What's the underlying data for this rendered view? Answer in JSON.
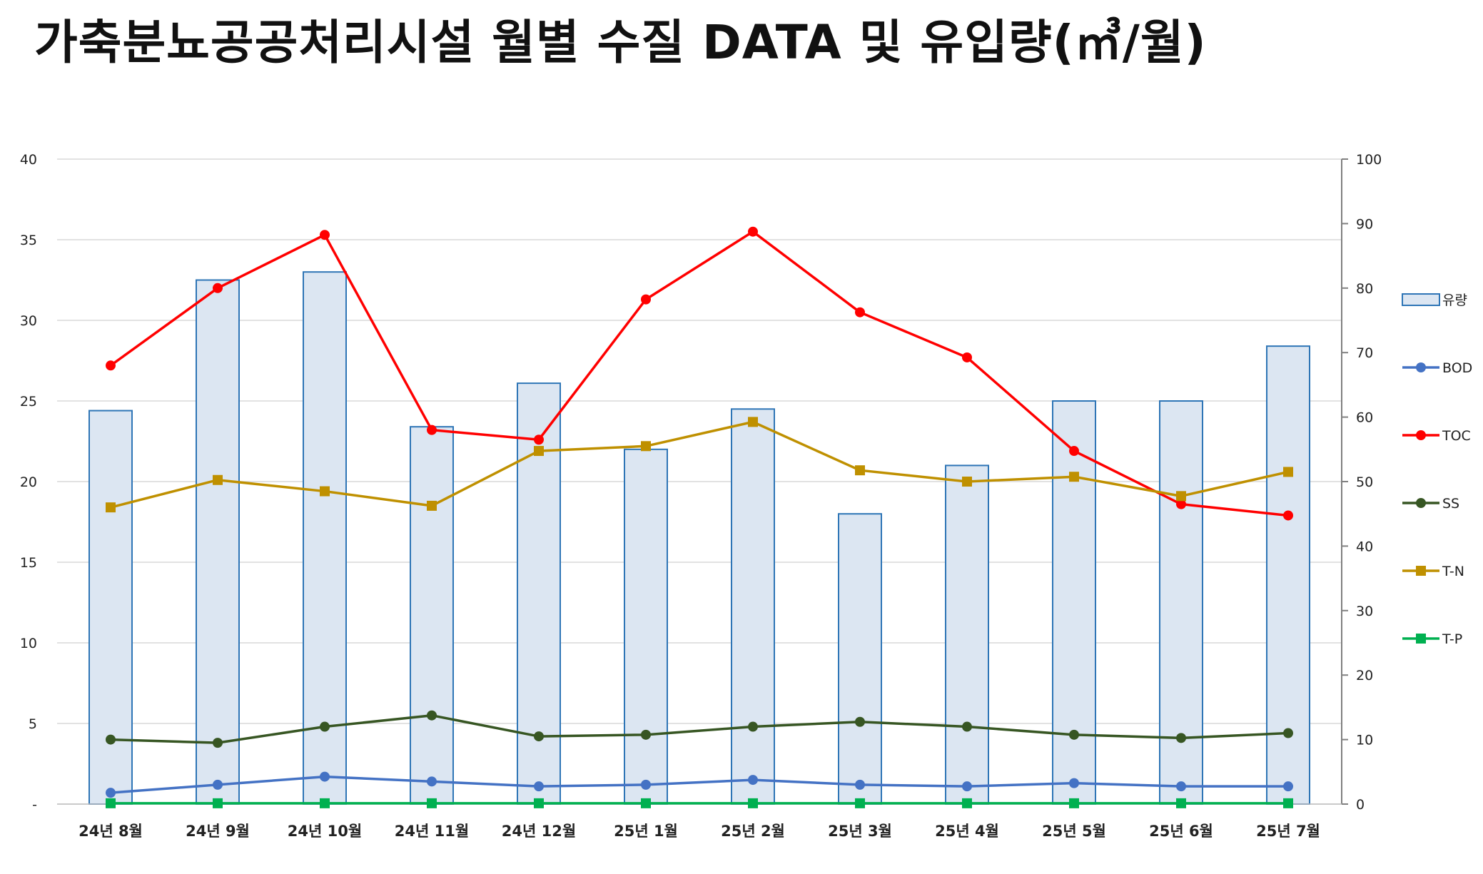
{
  "chart_data": {
    "type": "bar+line",
    "title": "가축분뇨공공처리시설 월별 수질 DATA 및 유입량(㎥/월)",
    "categories": [
      "24년 8월",
      "24년 9월",
      "24년 10월",
      "24년 11월",
      "24년 12월",
      "25년 1월",
      "25년 2월",
      "25년 3월",
      "25년 4월",
      "25년 5월",
      "25년 6월",
      "25년 7월"
    ],
    "y_left": {
      "range": [
        0,
        40
      ],
      "ticks": [
        "-",
        "5",
        "10",
        "15",
        "20",
        "25",
        "30",
        "35",
        "40"
      ]
    },
    "y_right": {
      "range": [
        0,
        100
      ],
      "ticks": [
        "0",
        "10",
        "20",
        "30",
        "40",
        "50",
        "60",
        "70",
        "80",
        "90",
        "100"
      ]
    },
    "grid": true,
    "legend_position": "right",
    "series": [
      {
        "name": "유량",
        "kind": "bar",
        "axis": "left",
        "color": "#DCE6F2",
        "stroke": "#2E75B6",
        "values": [
          24.4,
          32.5,
          33.0,
          23.4,
          26.1,
          22.0,
          24.5,
          18.0,
          21.0,
          25.0,
          25.0,
          28.4
        ]
      },
      {
        "name": "BOD",
        "kind": "line",
        "axis": "left",
        "marker": "circle",
        "color": "#4472C4",
        "values": [
          0.7,
          1.2,
          1.7,
          1.4,
          1.1,
          1.2,
          1.5,
          1.2,
          1.1,
          1.3,
          1.1,
          1.1
        ]
      },
      {
        "name": "TOC",
        "kind": "line",
        "axis": "left",
        "marker": "circle",
        "color": "#FF0000",
        "values": [
          27.2,
          32.0,
          35.3,
          23.2,
          22.6,
          31.3,
          35.5,
          30.5,
          27.7,
          21.9,
          18.6,
          17.9
        ]
      },
      {
        "name": "SS",
        "kind": "line",
        "axis": "left",
        "marker": "circle",
        "color": "#375623",
        "values": [
          4.0,
          3.8,
          4.8,
          5.5,
          4.2,
          4.3,
          4.8,
          5.1,
          4.8,
          4.3,
          4.1,
          4.4
        ]
      },
      {
        "name": "T-N",
        "kind": "line",
        "axis": "left",
        "marker": "square",
        "color": "#BF9000",
        "values": [
          18.4,
          20.1,
          19.4,
          18.5,
          21.9,
          22.2,
          23.7,
          20.7,
          20.0,
          20.3,
          19.1,
          20.6
        ]
      },
      {
        "name": "T-P",
        "kind": "line",
        "axis": "left",
        "marker": "square",
        "color": "#00B050",
        "values": [
          0.05,
          0.05,
          0.05,
          0.05,
          0.05,
          0.05,
          0.05,
          0.05,
          0.05,
          0.05,
          0.05,
          0.05
        ]
      }
    ]
  }
}
